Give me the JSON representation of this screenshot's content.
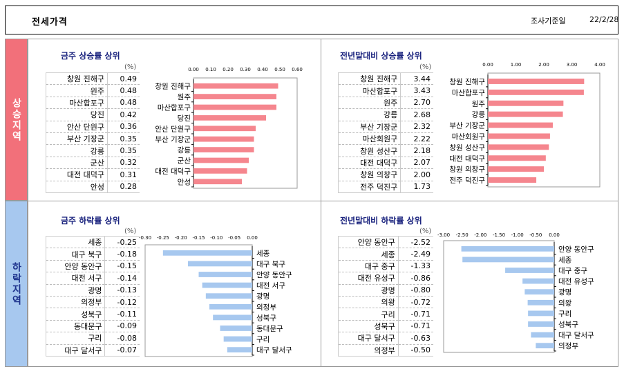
{
  "header": {
    "title": "전세가격",
    "date_label": "조사기준일",
    "date_value": "22/2/28"
  },
  "side": {
    "rise_label": "상승지역",
    "fall_label": "하락지역"
  },
  "unit": "(%)",
  "colors": {
    "rise": "#f5868e",
    "fall": "#a7c8ef"
  },
  "chart_data": [
    {
      "type": "bar",
      "title": "금주 상승률 상위",
      "categories": [
        "창원 진해구",
        "원주",
        "마산합포구",
        "당진",
        "안산 단원구",
        "부산 기장군",
        "강릉",
        "군산",
        "대전 대덕구",
        "안성"
      ],
      "values": [
        0.49,
        0.48,
        0.48,
        0.42,
        0.36,
        0.35,
        0.35,
        0.32,
        0.31,
        0.28
      ],
      "value_labels": [
        "0.49",
        "0.48",
        "0.48",
        "0.42",
        "0.36",
        "0.35",
        "0.35",
        "0.32",
        "0.31",
        "0.28"
      ],
      "xlim": [
        0,
        0.6
      ],
      "xticks": [
        "0.00",
        "0.10",
        "0.20",
        "0.30",
        "0.40",
        "0.50",
        "0.60"
      ],
      "orientation": "horizontal"
    },
    {
      "type": "bar",
      "title": "전년말대비 상승률 상위",
      "categories": [
        "창원 진해구",
        "마산합포구",
        "원주",
        "강릉",
        "부산 기장군",
        "마산회원구",
        "창원 성산구",
        "대전 대덕구",
        "창원 의창구",
        "전주 덕진구"
      ],
      "values": [
        3.44,
        3.43,
        2.7,
        2.68,
        2.32,
        2.22,
        2.18,
        2.07,
        2.0,
        1.73
      ],
      "value_labels": [
        "3.44",
        "3.43",
        "2.70",
        "2.68",
        "2.32",
        "2.22",
        "2.18",
        "2.07",
        "2.00",
        "1.73"
      ],
      "xlim": [
        0,
        4
      ],
      "xticks": [
        "0.00",
        "1.00",
        "2.00",
        "3.00",
        "4.00"
      ],
      "orientation": "horizontal"
    },
    {
      "type": "bar",
      "title": "금주 하락률 상위",
      "categories": [
        "세종",
        "대구 북구",
        "안양 동안구",
        "대전 서구",
        "광명",
        "의정부",
        "성북구",
        "동대문구",
        "구리",
        "대구 달서구"
      ],
      "values": [
        -0.25,
        -0.18,
        -0.15,
        -0.14,
        -0.13,
        -0.12,
        -0.11,
        -0.09,
        -0.08,
        -0.07
      ],
      "value_labels": [
        "-0.25",
        "-0.18",
        "-0.15",
        "-0.14",
        "-0.13",
        "-0.12",
        "-0.11",
        "-0.09",
        "-0.08",
        "-0.07"
      ],
      "xlim": [
        -0.3,
        0
      ],
      "xticks": [
        "-0.30",
        "-0.25",
        "-0.20",
        "-0.15",
        "-0.10",
        "-0.05",
        "0.00"
      ],
      "orientation": "horizontal"
    },
    {
      "type": "bar",
      "title": "전년말대비 하락률 상위",
      "categories": [
        "안양 동안구",
        "세종",
        "대구 중구",
        "대전 유성구",
        "광명",
        "의왕",
        "구리",
        "성북구",
        "대구 달서구",
        "의정부"
      ],
      "values": [
        -2.52,
        -2.49,
        -1.33,
        -0.86,
        -0.8,
        -0.72,
        -0.71,
        -0.71,
        -0.63,
        -0.5
      ],
      "value_labels": [
        "-2.52",
        "-2.49",
        "-1.33",
        "-0.86",
        "-0.80",
        "-0.72",
        "-0.71",
        "-0.71",
        "-0.63",
        "-0.50"
      ],
      "xlim": [
        -3,
        0
      ],
      "xticks": [
        "-3.00",
        "-2.50",
        "-2.00",
        "-1.50",
        "-1.00",
        "-0.50",
        "0.00"
      ],
      "orientation": "horizontal"
    }
  ]
}
